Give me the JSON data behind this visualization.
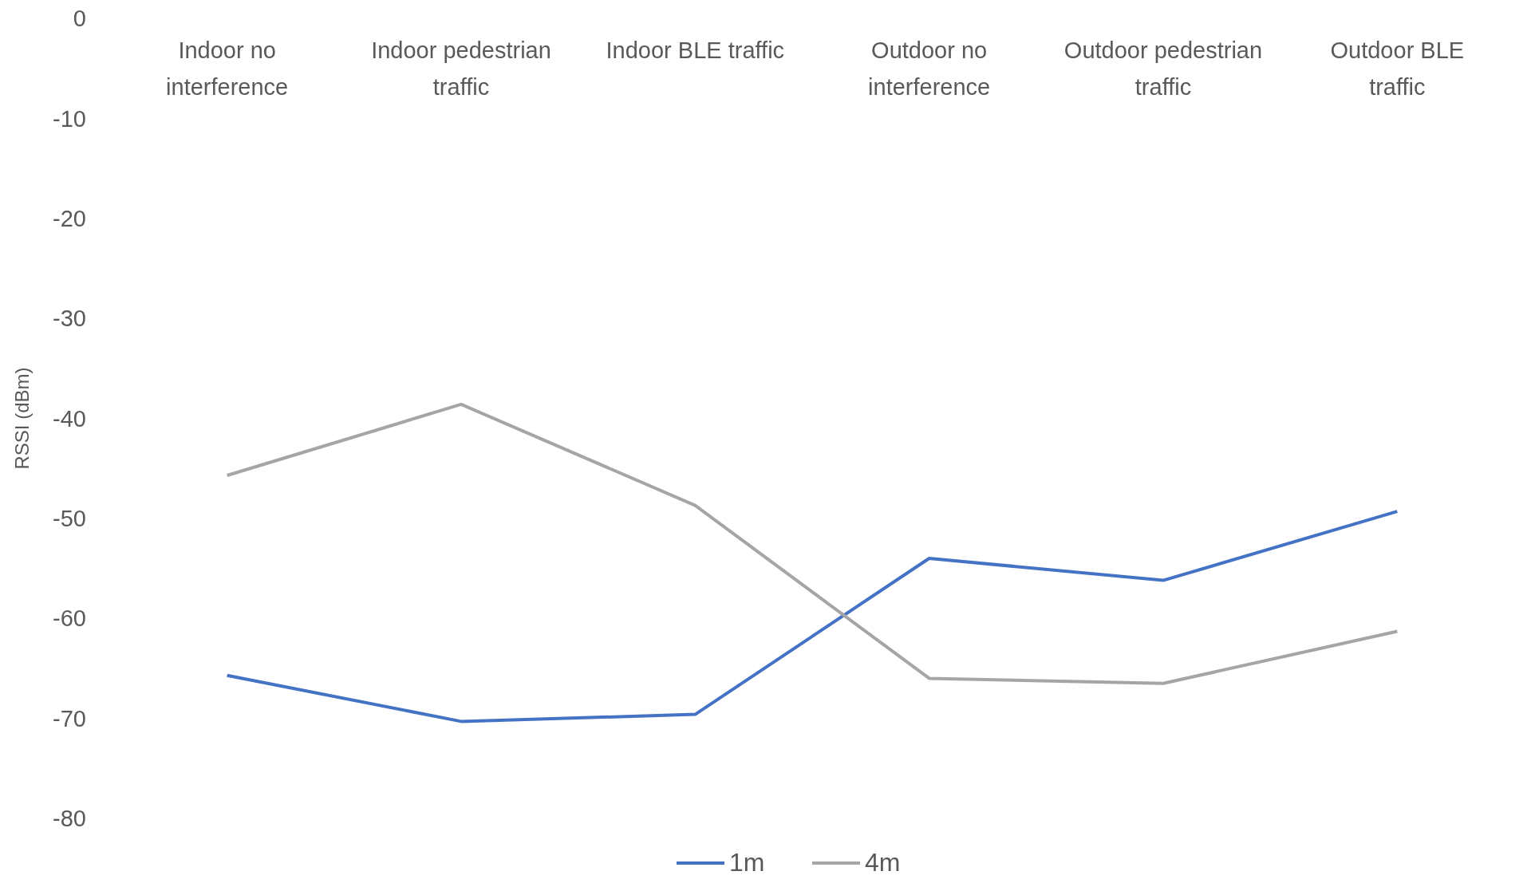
{
  "chart_data": {
    "type": "line",
    "ylabel": "RSSI (dBm)",
    "categories": [
      "Indoor no interference",
      "Indoor pedestrian traffic",
      "Indoor BLE traffic",
      "Outdoor no interference",
      "Outdoor pedestrian traffic",
      "Outdoor BLE traffic"
    ],
    "series": [
      {
        "name": "1m",
        "color": "#4472c4",
        "values": [
          -65.7,
          -70.3,
          -69.6,
          -54.0,
          -56.2,
          -49.3
        ]
      },
      {
        "name": "4m",
        "color": "#a5a5a5",
        "values": [
          -45.7,
          -38.6,
          -48.7,
          -66.0,
          -66.5,
          -61.3
        ]
      }
    ],
    "ylim": [
      -80,
      0
    ],
    "yticks": [
      0,
      -10,
      -20,
      -30,
      -40,
      -50,
      -60,
      -70,
      -80
    ],
    "grid": false,
    "legend": "bottom",
    "marker": "none",
    "line_style": "solid"
  }
}
